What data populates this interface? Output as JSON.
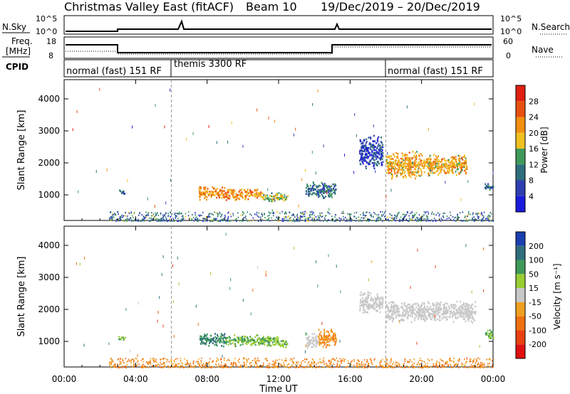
{
  "header": {
    "title": "Christmas Valley East (fitACF)",
    "beam": "Beam 10",
    "date_range": "19/Dec/2019 – 20/Dec/2019"
  },
  "panels": {
    "nsky_label": "N.Sky",
    "nsearch_label": "N.Search",
    "freq_label_line1": "Freq.",
    "freq_label_line2": "[MHz]",
    "nave_label": "Nave",
    "cpid_label": "CPID",
    "nsky_ticks": [
      "10^5",
      "10^0"
    ],
    "nsearch_ticks": [
      "10^5",
      "10^0"
    ],
    "freq_ticks": [
      "18",
      "8"
    ],
    "nave_ticks": [
      "60",
      "0"
    ]
  },
  "cpid_segments": [
    {
      "label": "normal (fast) 151 RF",
      "start_hour": 0
    },
    {
      "label": "themis 3300 RF",
      "start_hour": 6
    },
    {
      "label": "normal (fast) 151 RF",
      "start_hour": 18
    }
  ],
  "colors": {
    "power_scale": [
      "#1a1adc",
      "#2e3fb0",
      "#2f6e7c",
      "#3f9a5a",
      "#f0c020",
      "#f29010",
      "#e85010",
      "#e02010"
    ],
    "velocity_scale": [
      "#1a3fb0",
      "#2f6e7c",
      "#3f9a5a",
      "#9acd32",
      "#c8c8c8",
      "#f0a020",
      "#f07010",
      "#e84010",
      "#e01010"
    ]
  },
  "chart_data": [
    {
      "type": "heatmap",
      "panel": "power",
      "ylabel": "Slant Range [km]",
      "yticks": [
        1000,
        2000,
        3000,
        4000
      ],
      "ylim": [
        200,
        4600
      ],
      "xlim_hours": [
        0,
        24
      ],
      "colorbar_label": "Power [dB]",
      "colorbar_ticks": [
        4,
        8,
        12,
        16,
        20,
        24,
        28
      ],
      "colorbar_range": [
        0,
        32
      ],
      "scatter_regions": [
        {
          "t0": 3.0,
          "t1": 3.4,
          "r0": 1050,
          "r1": 1200,
          "value": 8
        },
        {
          "t0": 7.5,
          "t1": 9.0,
          "r0": 850,
          "r1": 1300,
          "value": 22
        },
        {
          "t0": 9.0,
          "t1": 11.0,
          "r0": 850,
          "r1": 1250,
          "value": 22
        },
        {
          "t0": 11.0,
          "t1": 12.5,
          "r0": 800,
          "r1": 1100,
          "value": 16
        },
        {
          "t0": 13.5,
          "t1": 15.2,
          "r0": 900,
          "r1": 1450,
          "value": 10
        },
        {
          "t0": 16.5,
          "t1": 17.8,
          "r0": 1800,
          "r1": 2900,
          "value": 6
        },
        {
          "t0": 18.0,
          "t1": 20.0,
          "r0": 1500,
          "r1": 2400,
          "value": 20
        },
        {
          "t0": 20.0,
          "t1": 22.5,
          "r0": 1600,
          "r1": 2300,
          "value": 20
        },
        {
          "t0": 23.5,
          "t1": 24.0,
          "r0": 1100,
          "r1": 1400,
          "value": 8
        }
      ],
      "ground_scatter": {
        "t0": 2.5,
        "t1": 24.0,
        "r0": 200,
        "r1": 500,
        "value": 10
      }
    },
    {
      "type": "heatmap",
      "panel": "velocity",
      "ylabel": "Slant Range [km]",
      "xlabel": "Time UT",
      "yticks": [
        1000,
        2000,
        3000,
        4000
      ],
      "ylim": [
        200,
        4600
      ],
      "xlim_hours": [
        0,
        24
      ],
      "xticks": [
        "00:00",
        "04:00",
        "08:00",
        "12:00",
        "16:00",
        "20:00",
        "00:00"
      ],
      "colorbar_label": "Velocity [m s⁻¹]",
      "colorbar_ticks": [
        200,
        100,
        50,
        15,
        -15,
        -50,
        -100,
        -200
      ],
      "scatter_regions": [
        {
          "t0": 3.0,
          "t1": 3.4,
          "r0": 1050,
          "r1": 1200,
          "value": 50
        },
        {
          "t0": 7.5,
          "t1": 9.0,
          "r0": 850,
          "r1": 1300,
          "value": 100
        },
        {
          "t0": 9.0,
          "t1": 12.0,
          "r0": 850,
          "r1": 1250,
          "value": 50
        },
        {
          "t0": 12.0,
          "t1": 12.5,
          "r0": 800,
          "r1": 1100,
          "value": 50
        },
        {
          "t0": 13.5,
          "t1": 14.2,
          "r0": 800,
          "r1": 1300,
          "value": 0
        },
        {
          "t0": 14.2,
          "t1": 15.2,
          "r0": 800,
          "r1": 1450,
          "value": -50
        },
        {
          "t0": 16.5,
          "t1": 17.8,
          "r0": 1900,
          "r1": 2600,
          "value": 0
        },
        {
          "t0": 18.0,
          "t1": 23.0,
          "r0": 1600,
          "r1": 2300,
          "value": 0
        },
        {
          "t0": 23.5,
          "t1": 24.0,
          "r0": 1100,
          "r1": 1400,
          "value": 50
        }
      ],
      "ground_scatter": {
        "t0": 2.5,
        "t1": 24.0,
        "r0": 200,
        "r1": 500,
        "value": -50
      }
    }
  ]
}
